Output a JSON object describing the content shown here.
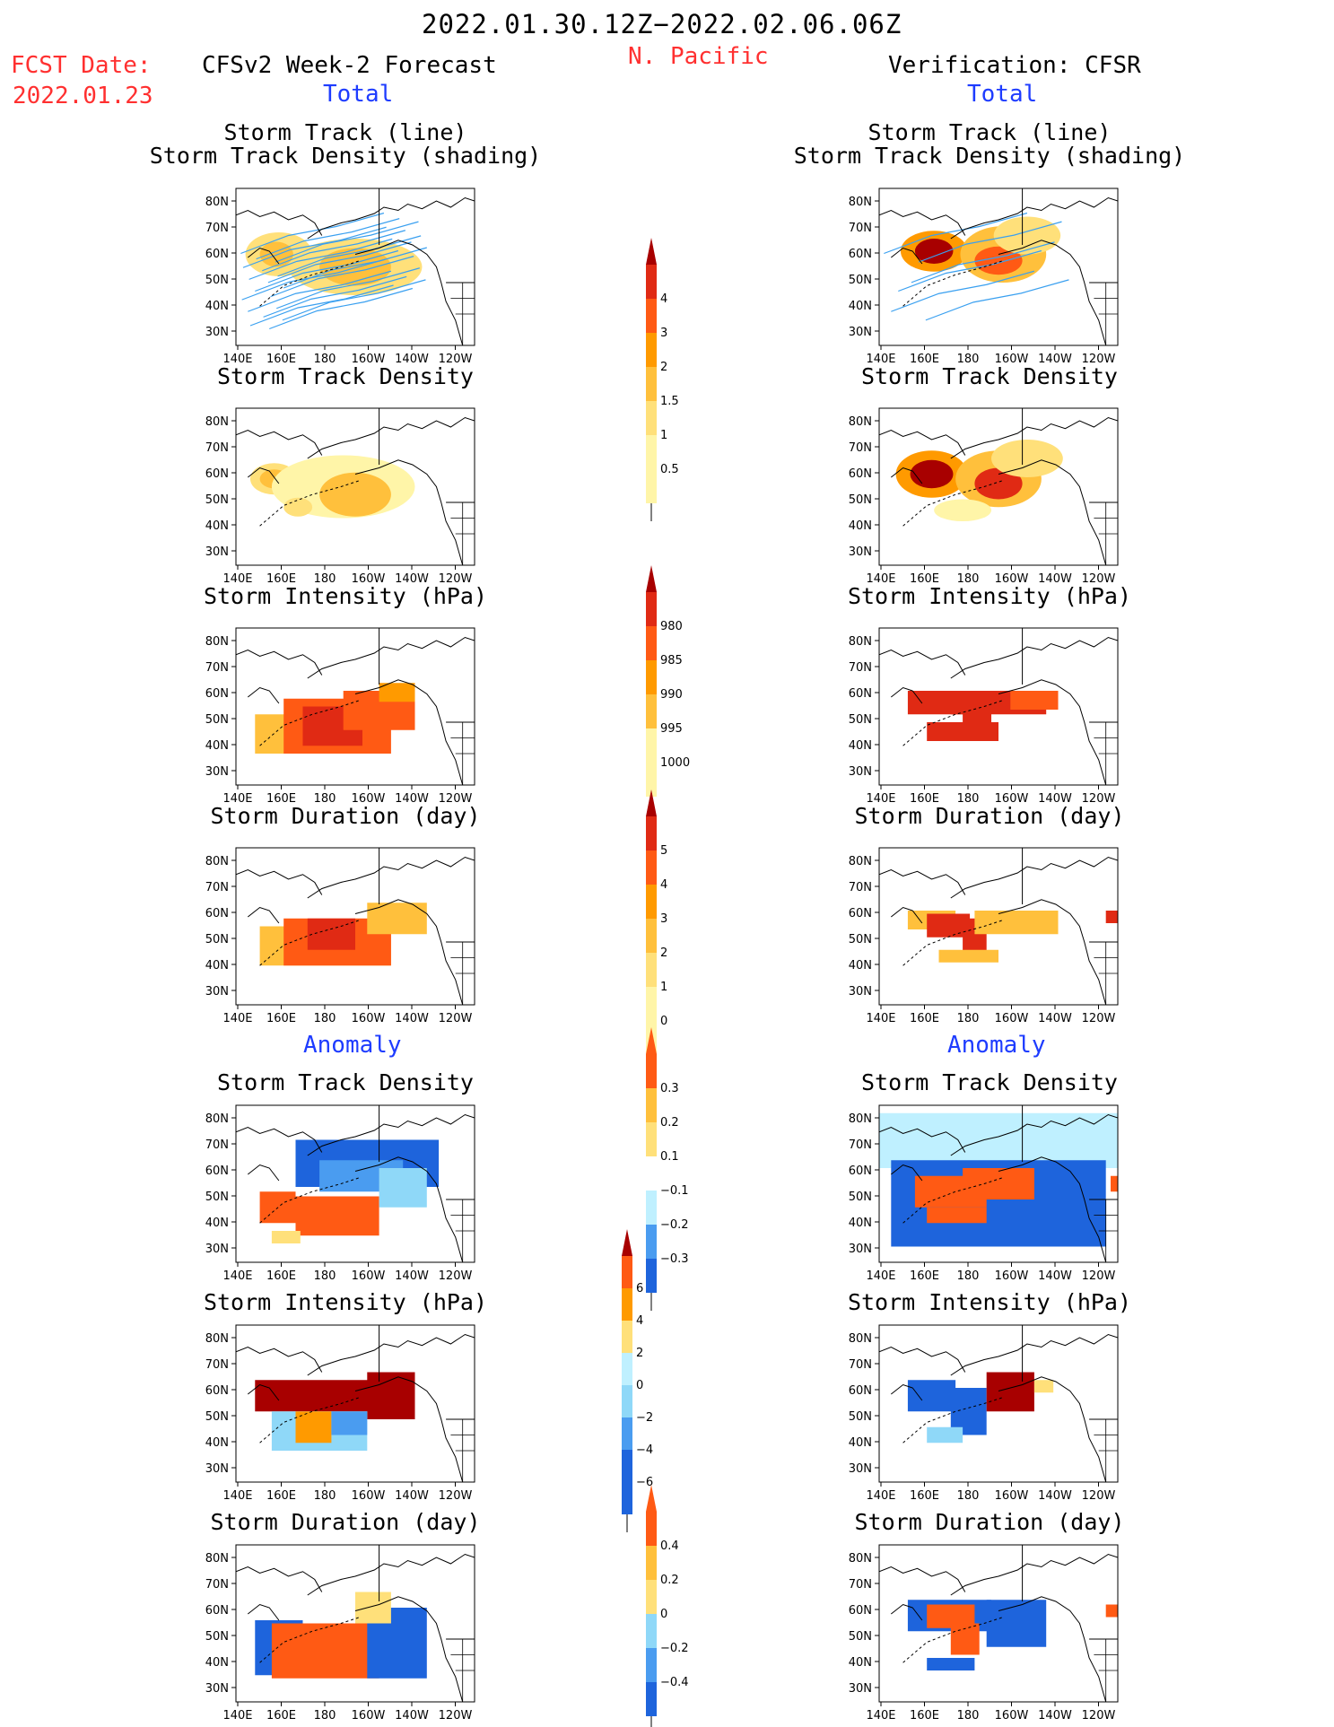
{
  "header": {
    "period": "2022.01.30.12Z−2022.02.06.06Z",
    "region": "N. Pacific",
    "fcst_label": "FCST Date:",
    "fcst_date": "2022.01.23",
    "left_title": "CFSv2 Week-2 Forecast",
    "right_title": "Verification: CFSR",
    "left_total": "Total",
    "right_total": "Total",
    "left_anomaly": "Anomaly",
    "right_anomaly": "Anomaly"
  },
  "axes": {
    "lat_labels": [
      "80N",
      "70N",
      "60N",
      "50N",
      "40N",
      "30N"
    ],
    "lon_labels": [
      "140E",
      "160E",
      "180",
      "160W",
      "140W",
      "120W"
    ]
  },
  "panels": {
    "track_line1": "Storm Track (line)",
    "track_line2": "Storm Track Density (shading)",
    "density": "Storm Track Density",
    "intensity": "Storm Intensity (hPa)",
    "duration": "Storm Duration (day)"
  },
  "colorbars": {
    "density": [
      "4",
      "3",
      "2",
      "1.5",
      "1",
      "0.5"
    ],
    "intensity": [
      "1000",
      "995",
      "990",
      "985",
      "980"
    ],
    "duration": [
      "5",
      "4",
      "3",
      "2",
      "1",
      "0"
    ],
    "density_anom": [
      "0.3",
      "0.2",
      "0.1",
      "−0.1",
      "−0.2",
      "−0.3"
    ],
    "intensity_anom": [
      "6",
      "4",
      "2",
      "0",
      "−2",
      "−4",
      "−6"
    ],
    "duration_anom": [
      "0.4",
      "0.2",
      "0",
      "−0.2",
      "−0.4"
    ]
  },
  "colors": {
    "warm": [
      "#fff5a8",
      "#ffe07a",
      "#ffc03c",
      "#ff9a00",
      "#ff5a14",
      "#e02a14",
      "#a80000"
    ],
    "cool": [
      "#bff0ff",
      "#8fd8f8",
      "#4a9cf0",
      "#1e64dc"
    ],
    "track_line": "#3aa0f0"
  }
}
